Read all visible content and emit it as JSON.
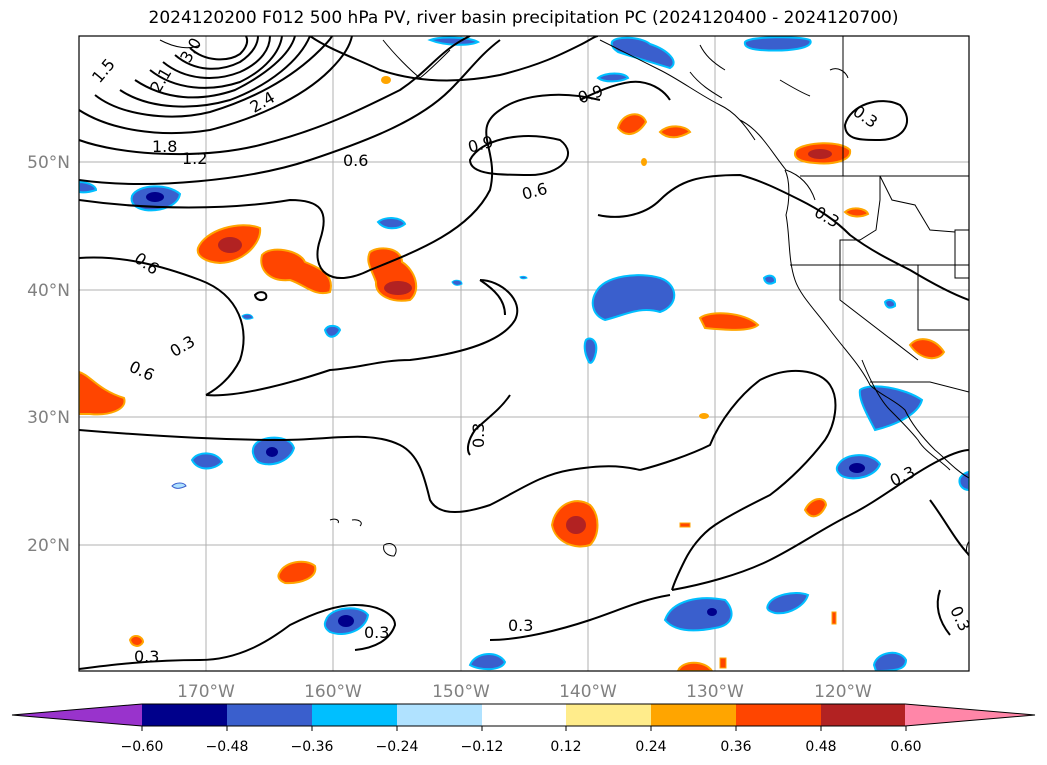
{
  "title": "2024120200 F012 500 hPa PV, river basin precipitation PC (2024120400 - 2024120700)",
  "map": {
    "lat_labels": [
      "50°N",
      "40°N",
      "30°N",
      "20°N"
    ],
    "lon_labels": [
      "170°W",
      "160°W",
      "150°W",
      "140°W",
      "130°W",
      "120°W"
    ],
    "tick_color": "#808080"
  },
  "contour_labels": [
    "1.5",
    "2.1",
    "3.0",
    "2.4",
    "1.8",
    "1.2",
    "0.6",
    "0.9",
    "0.9",
    "0.6",
    "0.3",
    "0.6",
    "0.3",
    "0.6",
    "0.3",
    "0.3",
    "0.3",
    "0.3",
    "0.3",
    "0.3"
  ],
  "colorbar": {
    "ticks": [
      "−0.60",
      "−0.48",
      "−0.36",
      "−0.24",
      "−0.12",
      "0.12",
      "0.24",
      "0.36",
      "0.48",
      "0.60"
    ],
    "colors": [
      "#9933cc",
      "#00008b",
      "#3a5fcd",
      "#00bfff",
      "#b0e2ff",
      "#ffffff",
      "#ffec8b",
      "#ffa500",
      "#ff4500",
      "#b22222",
      "#ff86a8"
    ]
  }
}
